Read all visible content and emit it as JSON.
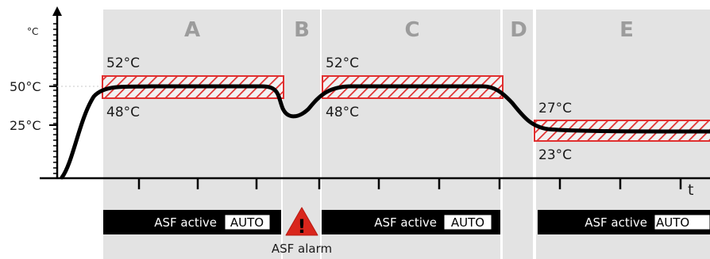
{
  "axis": {
    "y_unit": "°C",
    "y_tick_50": "50°C",
    "y_tick_25": "25°C",
    "x_label": "t"
  },
  "zones": [
    {
      "letter": "A"
    },
    {
      "letter": "B"
    },
    {
      "letter": "C"
    },
    {
      "letter": "D"
    },
    {
      "letter": "E"
    }
  ],
  "bands": [
    {
      "upper_label": "52°C",
      "lower_label": "48°C"
    },
    {
      "upper_label": "52°C",
      "lower_label": "48°C"
    },
    {
      "upper_label": "27°C",
      "lower_label": "23°C"
    }
  ],
  "status_bars": [
    {
      "text": "ASF active",
      "badge": "AUTO"
    },
    {
      "text": "ASF active",
      "badge": "AUTO"
    },
    {
      "text": "ASF active",
      "badge": "AUTO"
    }
  ],
  "alarm": {
    "symbol": "!",
    "label": "ASF alarm"
  },
  "colors": {
    "zone_background": "#e3e3e3",
    "band_hatch": "#e03030",
    "curve": "#000000",
    "status_bar": "#000000",
    "alarm": "#d9261c"
  }
}
